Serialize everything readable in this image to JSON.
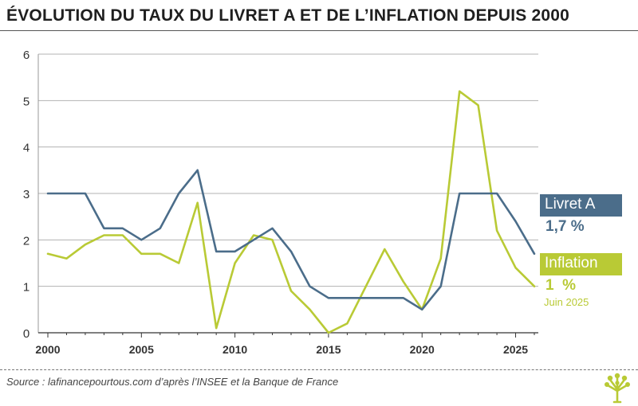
{
  "header": {
    "title": "ÉVOLUTION DU TAUX DU LIVRET A ET DE L’INFLATION DEPUIS 2000"
  },
  "chart_data": {
    "type": "line",
    "title": "ÉVOLUTION DU TAUX DU LIVRET A ET DE L’INFLATION DEPUIS 2000",
    "xlabel": "",
    "ylabel": "",
    "xlim": [
      2000,
      2026
    ],
    "ylim": [
      0,
      6
    ],
    "xticks": [
      2000,
      2005,
      2010,
      2015,
      2020,
      2025
    ],
    "yticks": [
      0,
      1,
      2,
      3,
      4,
      5,
      6
    ],
    "grid": true,
    "series": [
      {
        "name": "Livret A",
        "color": "#4b6d8a",
        "x": [
          2000,
          2001,
          2002,
          2003,
          2004,
          2005,
          2006,
          2007,
          2008,
          2009,
          2010,
          2011,
          2012,
          2013,
          2014,
          2015,
          2016,
          2017,
          2018,
          2019,
          2020,
          2021,
          2022,
          2023,
          2024,
          2025,
          2026
        ],
        "values": [
          3,
          3,
          3,
          2.25,
          2.25,
          2,
          2.25,
          3,
          3.5,
          1.75,
          1.75,
          2,
          2.25,
          1.75,
          1,
          0.75,
          0.75,
          0.75,
          0.75,
          0.75,
          0.5,
          1,
          3,
          3,
          3,
          2.4,
          1.7
        ]
      },
      {
        "name": "Inflation",
        "color": "#b9ca35",
        "x": [
          2000,
          2001,
          2002,
          2003,
          2004,
          2005,
          2006,
          2007,
          2008,
          2009,
          2010,
          2011,
          2012,
          2013,
          2014,
          2015,
          2016,
          2017,
          2018,
          2019,
          2020,
          2021,
          2022,
          2023,
          2024,
          2025,
          2026
        ],
        "values": [
          1.7,
          1.6,
          1.9,
          2.1,
          2.1,
          1.7,
          1.7,
          1.5,
          2.8,
          0.1,
          1.5,
          2.1,
          2.0,
          0.9,
          0.5,
          0.0,
          0.2,
          1.0,
          1.8,
          1.1,
          0.5,
          1.6,
          5.2,
          4.9,
          2.2,
          1.4,
          1.0
        ]
      }
    ],
    "legend": {
      "placement": "right",
      "livret_label": "Livret A",
      "livret_value": "1,7 %",
      "inflation_label": "Inflation",
      "inflation_value": "1  %",
      "inflation_note": "Juin 2025"
    }
  },
  "footer": {
    "source": "Source : lafinancepourtous.com d’après l’INSEE et la Banque de France"
  },
  "logo": {
    "icon": "tree-logo-icon",
    "color": "#b9ca35"
  }
}
